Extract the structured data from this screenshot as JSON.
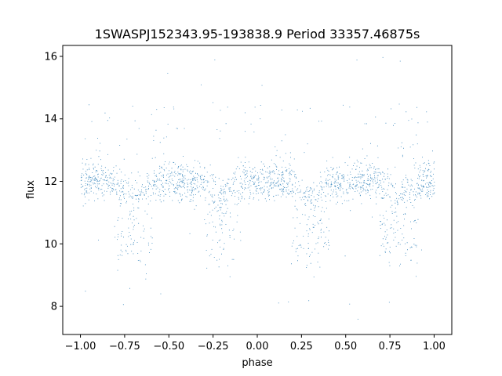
{
  "chart_data": {
    "type": "scatter",
    "title": "1SWASPJ152343.95-193838.9 Period 33357.46875s",
    "xlabel": "phase",
    "ylabel": "flux",
    "xlim": [
      -1.1,
      1.1
    ],
    "ylim": [
      7.1,
      16.35
    ],
    "xticks": [
      -1.0,
      -0.75,
      -0.5,
      -0.25,
      0.0,
      0.25,
      0.5,
      0.75,
      1.0
    ],
    "xtick_labels": [
      "−1.00",
      "−0.75",
      "−0.50",
      "−0.25",
      "0.00",
      "0.25",
      "0.50",
      "0.75",
      "1.00"
    ],
    "yticks": [
      8,
      10,
      12,
      14,
      16
    ],
    "ytick_labels": [
      "8",
      "10",
      "12",
      "14",
      "16"
    ],
    "grid": false,
    "point_color": "#1f77b4",
    "series": [
      {
        "description_points": "dense folded light curve sampled over phase -1 to 1",
        "baseline_flux": 12.0,
        "scatter": 0.3,
        "dip_centers_phase": [
          -0.7,
          -0.2,
          0.3,
          0.8
        ],
        "dip_min_flux": 9.5,
        "phase_range": [
          -1.0,
          1.0
        ],
        "flux_outlier_range": [
          7.5,
          16.0
        ]
      }
    ]
  }
}
